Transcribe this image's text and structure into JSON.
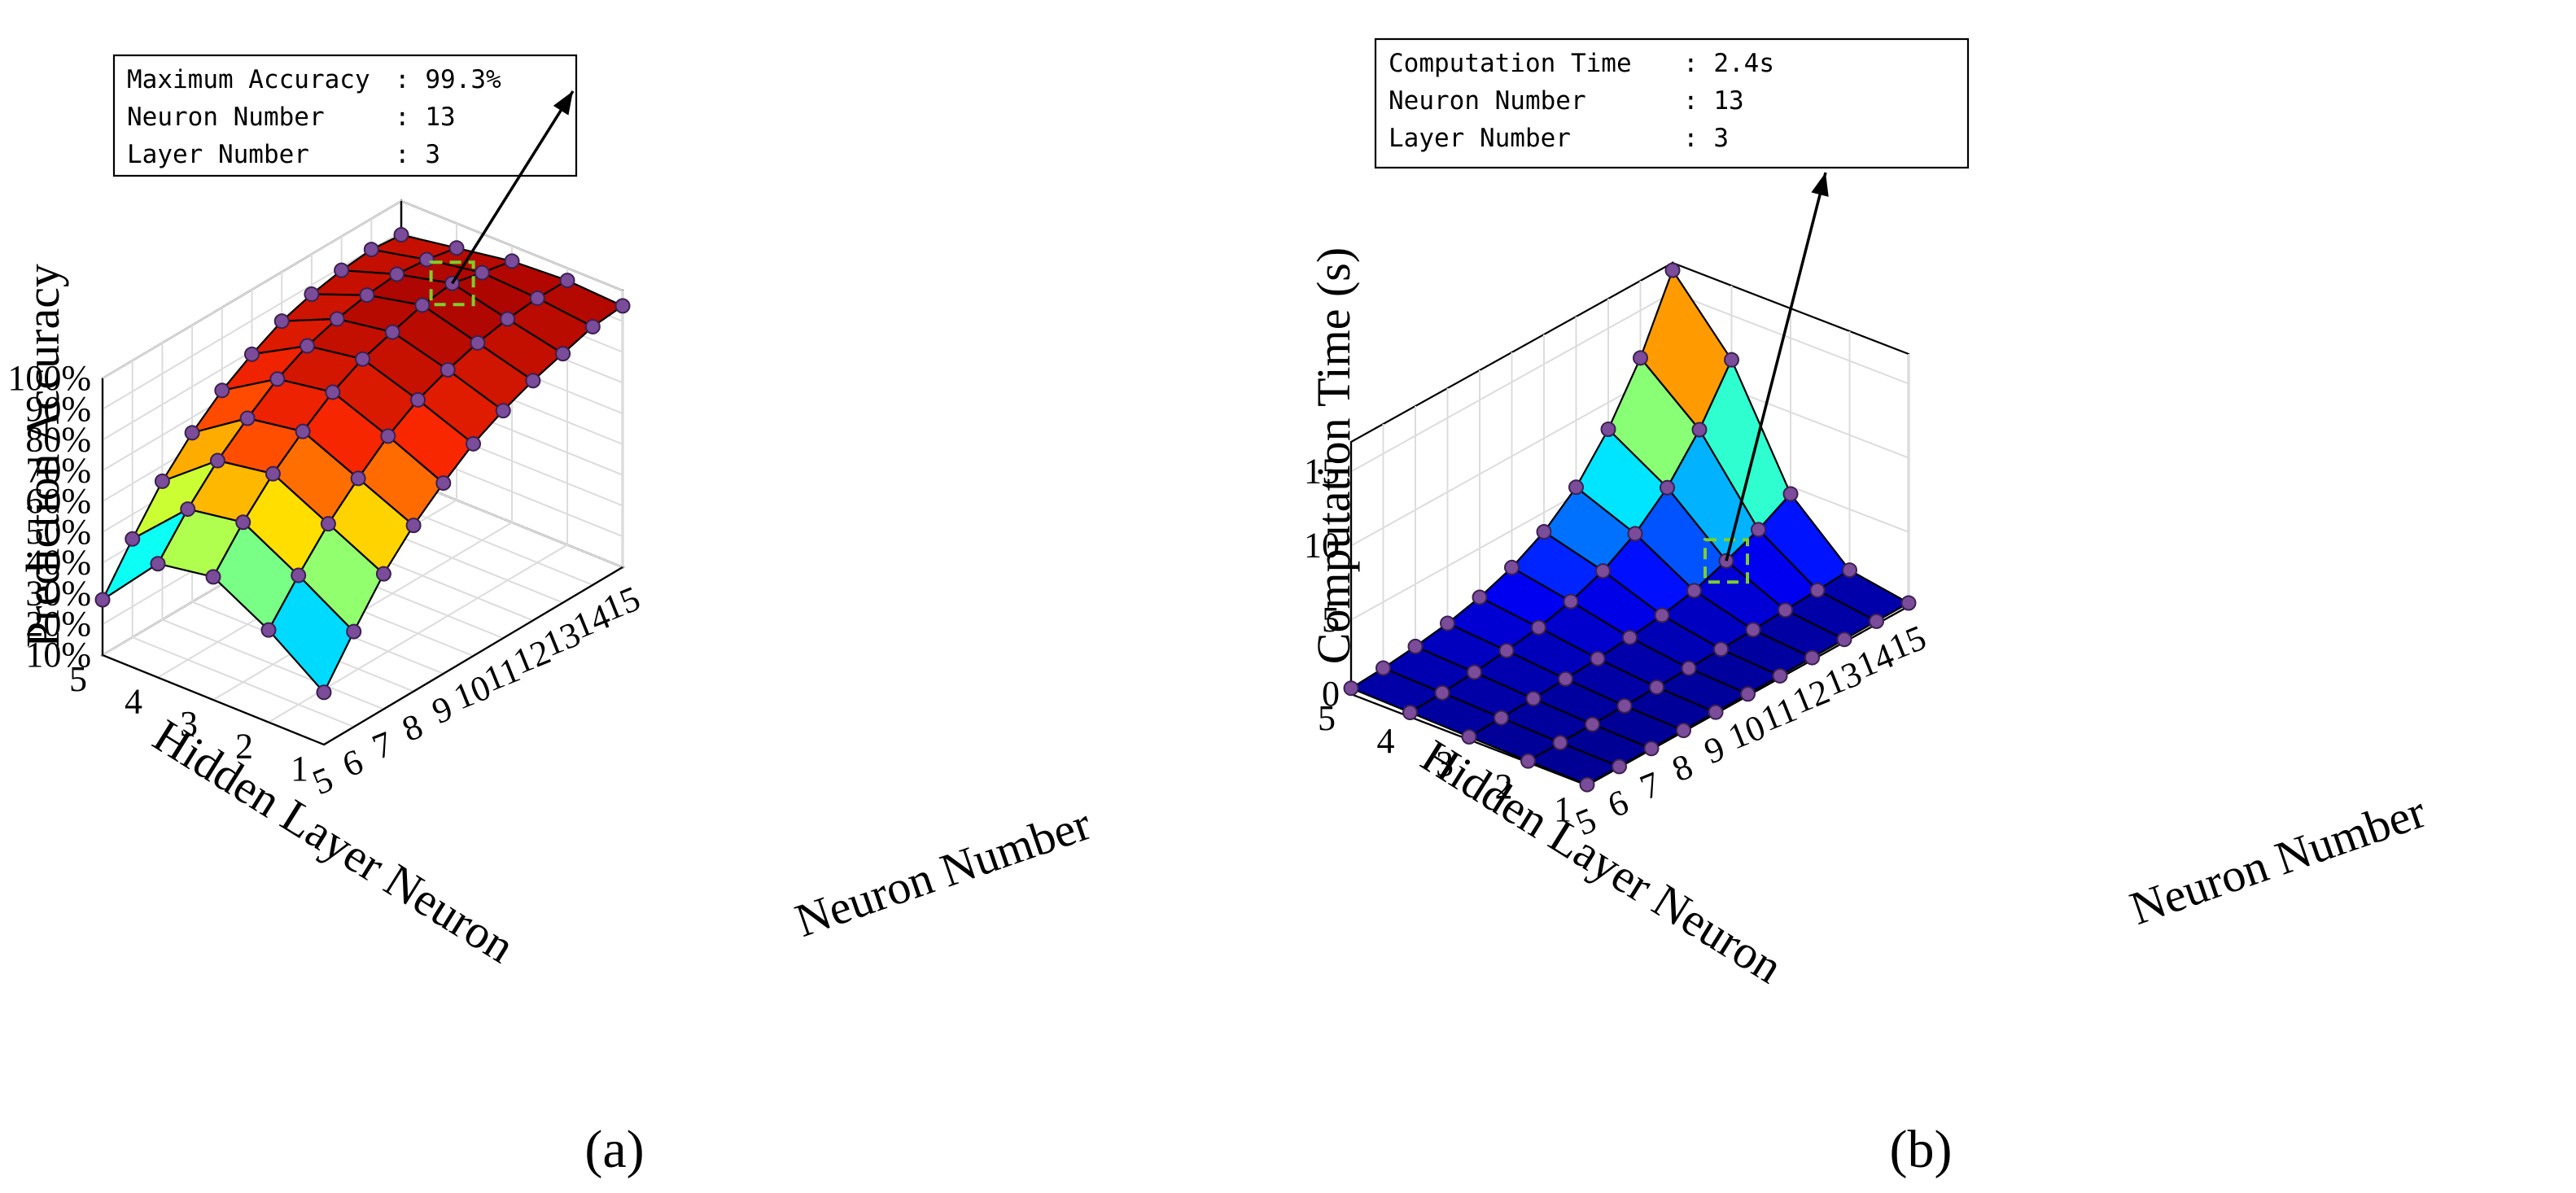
{
  "chart_data": [
    {
      "type": "surface",
      "panel_label": "(a)",
      "title": "",
      "xlabel": "Neuron Number",
      "ylabel": "Hidden Layer Neuron",
      "zlabel": "Prediction Accuracy",
      "x": [
        5,
        6,
        7,
        8,
        9,
        10,
        11,
        12,
        13,
        14,
        15
      ],
      "y": [
        1,
        2,
        3,
        4,
        5
      ],
      "z_ticks": [
        "10%",
        "20%",
        "30%",
        "40%",
        "50%",
        "60%",
        "70%",
        "80%",
        "90%",
        "100%"
      ],
      "zlim": [
        10,
        100
      ],
      "z_units": "%",
      "values": [
        [
          27,
          41,
          54,
          64,
          72,
          79,
          84,
          88,
          91,
          94,
          95
        ],
        [
          40,
          52,
          63,
          72,
          80,
          86,
          90,
          93,
          95,
          96,
          96
        ],
        [
          50,
          62,
          72,
          80,
          87,
          92,
          95,
          98,
          99.3,
          97,
          95
        ],
        [
          47,
          59,
          69,
          77,
          84,
          89,
          92,
          94,
          95,
          94,
          92
        ],
        [
          28,
          42,
          55,
          65,
          73,
          79,
          84,
          87,
          89,
          90,
          89
        ]
      ],
      "highlight": {
        "x": 13,
        "y": 3
      },
      "annotation": [
        {
          "label": "Maximum Accuracy",
          "value": ": 99.3%"
        },
        {
          "label": "Neuron Number",
          "value": ": 13"
        },
        {
          "label": "Layer Number",
          "value": ": 3"
        }
      ]
    },
    {
      "type": "surface",
      "panel_label": "(b)",
      "title": "",
      "xlabel": "Neuron Number",
      "ylabel": "Hidden Layer Neuron",
      "zlabel": "Computation Time (s)",
      "x": [
        5,
        6,
        7,
        8,
        9,
        10,
        11,
        12,
        13,
        14,
        15
      ],
      "y": [
        1,
        2,
        3,
        4,
        5
      ],
      "z_ticks": [
        "0",
        "5",
        "10",
        "15"
      ],
      "zlim": [
        0,
        17
      ],
      "z_units": "s",
      "values": [
        [
          0.05,
          0.06,
          0.07,
          0.08,
          0.1,
          0.12,
          0.14,
          0.16,
          0.18,
          0.2,
          0.22
        ],
        [
          0.1,
          0.13,
          0.16,
          0.2,
          0.25,
          0.32,
          0.4,
          0.5,
          0.62,
          0.75,
          0.9
        ],
        [
          0.2,
          0.27,
          0.36,
          0.48,
          0.64,
          0.86,
          1.15,
          1.6,
          2.4,
          3.3,
          4.5
        ],
        [
          0.3,
          0.42,
          0.6,
          0.85,
          1.2,
          1.75,
          2.6,
          3.9,
          5.8,
          8.5,
          12
        ],
        [
          0.4,
          0.55,
          0.8,
          1.15,
          1.7,
          2.5,
          3.7,
          5.5,
          8.2,
          11.8,
          16.5
        ]
      ],
      "highlight": {
        "x": 13,
        "y": 3
      },
      "annotation": [
        {
          "label": "Computation Time",
          "value": ": 2.4s"
        },
        {
          "label": "Neuron Number",
          "value": ": 13"
        },
        {
          "label": "Layer Number",
          "value": ": 3"
        }
      ]
    }
  ]
}
